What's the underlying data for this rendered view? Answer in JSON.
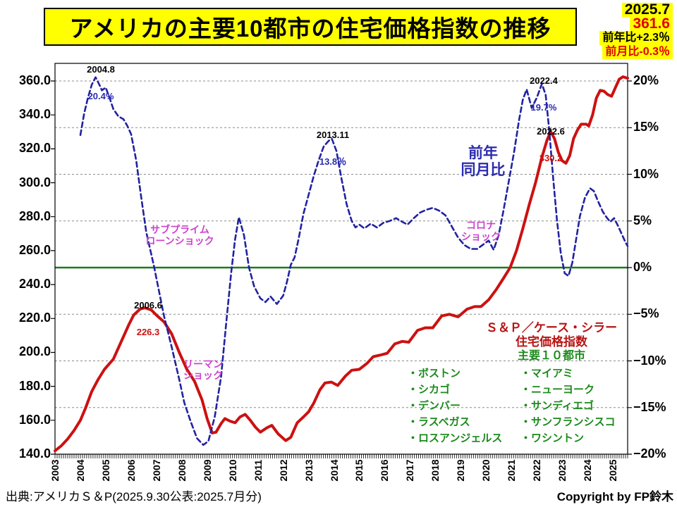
{
  "title": "アメリカの主要10都市の住宅価格指数の推移",
  "info_box": {
    "date": "2025.7",
    "latest_value": "361.6",
    "yoy_change": "前年比+2.3％",
    "mom_change": "前月比-0.3％"
  },
  "source": "出典:アメリカＳ＆P(2025.9.30公表:2025.7月分)",
  "copyright": "Copyright by FP鈴木",
  "annotations": {
    "peak_2004": {
      "date": "2004.8",
      "value": "20.4%"
    },
    "peak_2013": {
      "date": "2013.11",
      "value": "13.8％"
    },
    "peak_2022_yoy": {
      "date": "2022.4",
      "value": "19.7%"
    },
    "peak_2022_index": {
      "date": "2022.6",
      "value": "330.2"
    },
    "peak_2006": {
      "date": "2006.6",
      "value": "226.3"
    },
    "yoy_line_label": "前年\n同月比",
    "subprime_shock": "サブプライム\nローンショック",
    "lehman_shock": "リーマン\nショック",
    "corona_shock": "コロナ\nショック"
  },
  "legend": {
    "series_line1": "Ｓ＆Ｐ／ケース・シラー",
    "series_line2": "住宅価格指数",
    "series_line3": "主要１０都市",
    "cities_left": [
      "・ボストン",
      "・シカゴ",
      "・デンバー",
      "・ラスベガス",
      "・ロスアンジェルス"
    ],
    "cities_right": [
      "・マイアミ",
      "・ニューヨーク",
      "・サンディエゴ",
      "・サンフランシスコ",
      "・ワシントン"
    ]
  },
  "chart_data": {
    "type": "line",
    "title": "アメリカの主要10都市の住宅価格指数の推移",
    "x_axis": {
      "range": [
        2003,
        2025.583
      ],
      "labels": [
        [
          "2003",
          "2003"
        ],
        [
          "2004",
          "2004"
        ],
        [
          "2005",
          "2005"
        ],
        [
          "2006",
          "2006"
        ],
        [
          "2007",
          "2007"
        ],
        [
          "2008",
          "2008"
        ],
        [
          "2009",
          "2009"
        ],
        [
          "2010",
          "2010"
        ],
        [
          "2011",
          "2011"
        ],
        [
          "2012",
          "2012"
        ],
        [
          "2013",
          "2013"
        ],
        [
          "2014",
          "2014"
        ],
        [
          "2015",
          "2015"
        ],
        [
          "2016",
          "2016"
        ],
        [
          "2017",
          "2017"
        ],
        [
          "2018",
          "2018"
        ],
        [
          "2019",
          "2019"
        ],
        [
          "2020",
          "2020"
        ],
        [
          "2021",
          "2021"
        ],
        [
          "2022",
          "2022"
        ],
        [
          "2023",
          "2023"
        ],
        [
          "2024",
          "2024"
        ],
        [
          "2025",
          "2025"
        ]
      ],
      "minor_ticks_per_year": 12
    },
    "y_axis_left": {
      "range": [
        140,
        360
      ],
      "tick_step": 20,
      "labels": [
        [
          360,
          "360.0"
        ],
        [
          340,
          "340.0"
        ],
        [
          320,
          "320.0"
        ],
        [
          300,
          "300.0"
        ],
        [
          280,
          "280.0"
        ],
        [
          260,
          "260.0"
        ],
        [
          240,
          "240.0"
        ],
        [
          220,
          "220.0"
        ],
        [
          200,
          "200.0"
        ],
        [
          180,
          "180.0"
        ],
        [
          160,
          "160.0"
        ],
        [
          140,
          "140.0"
        ]
      ]
    },
    "y_axis_right": {
      "range": [
        -20,
        20
      ],
      "tick_step": 5,
      "unit": "%",
      "labels": [
        [
          20,
          "20%"
        ],
        [
          15,
          "15%"
        ],
        [
          10,
          "10%"
        ],
        [
          5,
          "5%"
        ],
        [
          0,
          "0%"
        ],
        [
          -5,
          "−5%"
        ],
        [
          -10,
          "−10%"
        ],
        [
          -15,
          "−15%"
        ],
        [
          -20,
          "−20%"
        ]
      ]
    },
    "gridlines_pct": [
      20,
      15,
      10,
      5,
      -5,
      -10,
      -15
    ],
    "zero_line_color": "#1e7a1e",
    "grid_color": "#8c8c8c",
    "series": [
      {
        "name": "S&P/ケース・シラー住宅価格指数 主要10都市",
        "axis": "left",
        "style": "solid",
        "color": "#cc1111",
        "points": [
          [
            2003.0,
            142
          ],
          [
            2003.25,
            145
          ],
          [
            2003.5,
            149
          ],
          [
            2003.75,
            154
          ],
          [
            2004.0,
            160
          ],
          [
            2004.2,
            167
          ],
          [
            2004.45,
            177
          ],
          [
            2004.7,
            184
          ],
          [
            2004.95,
            190
          ],
          [
            2005.3,
            196
          ],
          [
            2005.6,
            206
          ],
          [
            2005.9,
            216
          ],
          [
            2006.1,
            222
          ],
          [
            2006.35,
            225.5
          ],
          [
            2006.55,
            226.3
          ],
          [
            2006.8,
            225
          ],
          [
            2007.0,
            222
          ],
          [
            2007.3,
            218
          ],
          [
            2007.6,
            211
          ],
          [
            2007.9,
            200
          ],
          [
            2008.2,
            190
          ],
          [
            2008.5,
            183
          ],
          [
            2008.8,
            172
          ],
          [
            2009.0,
            161
          ],
          [
            2009.2,
            152.5
          ],
          [
            2009.35,
            153
          ],
          [
            2009.55,
            158
          ],
          [
            2009.7,
            161
          ],
          [
            2009.9,
            159.5
          ],
          [
            2010.1,
            158.5
          ],
          [
            2010.3,
            162
          ],
          [
            2010.5,
            163.5
          ],
          [
            2010.7,
            160
          ],
          [
            2010.9,
            156
          ],
          [
            2011.1,
            153
          ],
          [
            2011.35,
            155.5
          ],
          [
            2011.55,
            157
          ],
          [
            2011.8,
            152
          ],
          [
            2012.1,
            148
          ],
          [
            2012.3,
            150
          ],
          [
            2012.55,
            158.5
          ],
          [
            2012.8,
            162
          ],
          [
            2013.0,
            165
          ],
          [
            2013.2,
            170
          ],
          [
            2013.45,
            178
          ],
          [
            2013.65,
            182
          ],
          [
            2013.9,
            182.5
          ],
          [
            2014.15,
            180.5
          ],
          [
            2014.45,
            186
          ],
          [
            2014.7,
            189.5
          ],
          [
            2015.0,
            190
          ],
          [
            2015.3,
            193.5
          ],
          [
            2015.55,
            197.5
          ],
          [
            2015.85,
            198.5
          ],
          [
            2016.1,
            199.5
          ],
          [
            2016.4,
            205
          ],
          [
            2016.7,
            206.5
          ],
          [
            2016.95,
            206
          ],
          [
            2017.3,
            213
          ],
          [
            2017.6,
            214.5
          ],
          [
            2017.9,
            214.5
          ],
          [
            2018.25,
            221.5
          ],
          [
            2018.55,
            222.5
          ],
          [
            2018.9,
            221
          ],
          [
            2019.25,
            225.5
          ],
          [
            2019.55,
            227
          ],
          [
            2019.8,
            227
          ],
          [
            2020.1,
            231
          ],
          [
            2020.4,
            237
          ],
          [
            2020.7,
            244
          ],
          [
            2020.95,
            250
          ],
          [
            2021.2,
            260
          ],
          [
            2021.45,
            273
          ],
          [
            2021.7,
            287
          ],
          [
            2021.95,
            300
          ],
          [
            2022.2,
            315
          ],
          [
            2022.4,
            325
          ],
          [
            2022.55,
            330.2
          ],
          [
            2022.7,
            326
          ],
          [
            2022.85,
            318
          ],
          [
            2023.0,
            313
          ],
          [
            2023.15,
            311.5
          ],
          [
            2023.3,
            316
          ],
          [
            2023.45,
            326
          ],
          [
            2023.6,
            331
          ],
          [
            2023.75,
            334.5
          ],
          [
            2023.95,
            334.5
          ],
          [
            2024.05,
            333.5
          ],
          [
            2024.2,
            340
          ],
          [
            2024.35,
            350
          ],
          [
            2024.5,
            354.5
          ],
          [
            2024.65,
            354
          ],
          [
            2024.8,
            352
          ],
          [
            2024.95,
            351
          ],
          [
            2025.1,
            356
          ],
          [
            2025.25,
            361
          ],
          [
            2025.4,
            362.5
          ],
          [
            2025.5,
            362
          ],
          [
            2025.583,
            361.6
          ]
        ]
      },
      {
        "name": "前年同月比",
        "axis": "right",
        "style": "dashed",
        "color": "#2222a2",
        "points": [
          [
            2004.0,
            14.2
          ],
          [
            2004.15,
            16.5
          ],
          [
            2004.3,
            18.2
          ],
          [
            2004.45,
            19.6
          ],
          [
            2004.6,
            20.4
          ],
          [
            2004.75,
            19.6
          ],
          [
            2004.85,
            19.0
          ],
          [
            2005.0,
            19.3
          ],
          [
            2005.15,
            18.2
          ],
          [
            2005.3,
            17.0
          ],
          [
            2005.5,
            16.2
          ],
          [
            2005.7,
            15.9
          ],
          [
            2005.85,
            15.2
          ],
          [
            2006.0,
            14.3
          ],
          [
            2006.2,
            11.5
          ],
          [
            2006.4,
            7.5
          ],
          [
            2006.6,
            3.8
          ],
          [
            2006.9,
            0.2
          ],
          [
            2007.1,
            -2.5
          ],
          [
            2007.3,
            -5.2
          ],
          [
            2007.6,
            -8.5
          ],
          [
            2007.9,
            -12
          ],
          [
            2008.1,
            -14.5
          ],
          [
            2008.35,
            -16.5
          ],
          [
            2008.6,
            -18.3
          ],
          [
            2008.85,
            -19
          ],
          [
            2009.05,
            -18.6
          ],
          [
            2009.3,
            -16
          ],
          [
            2009.55,
            -11.7
          ],
          [
            2009.75,
            -6
          ],
          [
            2009.95,
            -0.5
          ],
          [
            2010.1,
            3
          ],
          [
            2010.25,
            5.4
          ],
          [
            2010.45,
            3.5
          ],
          [
            2010.65,
            0
          ],
          [
            2010.85,
            -2
          ],
          [
            2011.1,
            -3.3
          ],
          [
            2011.3,
            -3.7
          ],
          [
            2011.5,
            -3.1
          ],
          [
            2011.75,
            -3.9
          ],
          [
            2012.0,
            -3
          ],
          [
            2012.15,
            -1.5
          ],
          [
            2012.3,
            0.3
          ],
          [
            2012.45,
            1.1
          ],
          [
            2012.6,
            3
          ],
          [
            2012.8,
            5.8
          ],
          [
            2013.0,
            7.8
          ],
          [
            2013.2,
            9.8
          ],
          [
            2013.4,
            11.5
          ],
          [
            2013.6,
            13
          ],
          [
            2013.8,
            13.6
          ],
          [
            2013.92,
            13.8
          ],
          [
            2014.1,
            12.5
          ],
          [
            2014.3,
            9.5
          ],
          [
            2014.5,
            6.8
          ],
          [
            2014.7,
            5.0
          ],
          [
            2014.85,
            4.3
          ],
          [
            2015.0,
            4.6
          ],
          [
            2015.2,
            4.2
          ],
          [
            2015.45,
            4.7
          ],
          [
            2015.7,
            4.3
          ],
          [
            2015.95,
            4.8
          ],
          [
            2016.2,
            5.0
          ],
          [
            2016.45,
            5.3
          ],
          [
            2016.7,
            4.9
          ],
          [
            2016.9,
            4.6
          ],
          [
            2017.15,
            5.3
          ],
          [
            2017.4,
            5.9
          ],
          [
            2017.65,
            6.2
          ],
          [
            2017.9,
            6.4
          ],
          [
            2018.15,
            6.1
          ],
          [
            2018.4,
            5.6
          ],
          [
            2018.65,
            4.4
          ],
          [
            2018.9,
            3.2
          ],
          [
            2019.15,
            2.4
          ],
          [
            2019.4,
            2.0
          ],
          [
            2019.65,
            2.0
          ],
          [
            2019.9,
            2.5
          ],
          [
            2020.1,
            2.9
          ],
          [
            2020.3,
            1.9
          ],
          [
            2020.5,
            3.5
          ],
          [
            2020.7,
            6.3
          ],
          [
            2020.9,
            9.3
          ],
          [
            2021.1,
            12.3
          ],
          [
            2021.3,
            15.8
          ],
          [
            2021.45,
            18
          ],
          [
            2021.6,
            19.1
          ],
          [
            2021.8,
            17.1
          ],
          [
            2022.0,
            18.2
          ],
          [
            2022.2,
            19.7
          ],
          [
            2022.35,
            18.5
          ],
          [
            2022.5,
            14.5
          ],
          [
            2022.65,
            9.5
          ],
          [
            2022.8,
            5
          ],
          [
            2022.95,
            1.5
          ],
          [
            2023.1,
            -0.6
          ],
          [
            2023.25,
            -0.9
          ],
          [
            2023.4,
            0.5
          ],
          [
            2023.55,
            3
          ],
          [
            2023.7,
            5.5
          ],
          [
            2023.9,
            7.5
          ],
          [
            2024.1,
            8.5
          ],
          [
            2024.25,
            8.2
          ],
          [
            2024.4,
            7.2
          ],
          [
            2024.6,
            6.0
          ],
          [
            2024.75,
            5.4
          ],
          [
            2024.9,
            4.9
          ],
          [
            2025.05,
            5.3
          ],
          [
            2025.2,
            4.5
          ],
          [
            2025.35,
            3.6
          ],
          [
            2025.5,
            2.7
          ],
          [
            2025.583,
            2.3
          ]
        ]
      }
    ]
  }
}
